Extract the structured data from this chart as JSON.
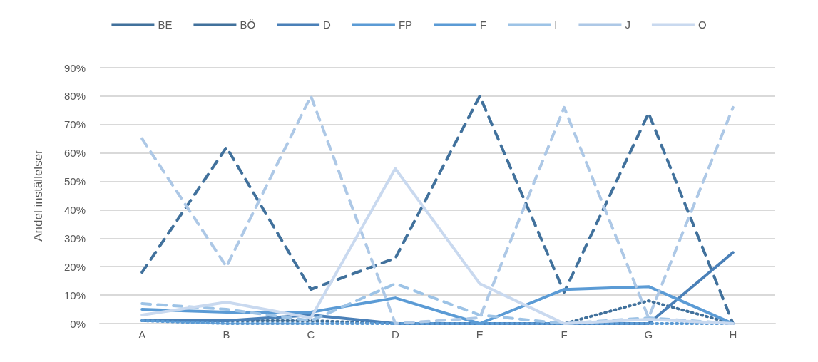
{
  "chart_data": {
    "type": "line",
    "ylabel": "Andel inställelser",
    "categories": [
      "A",
      "B",
      "C",
      "D",
      "E",
      "F",
      "G",
      "H"
    ],
    "series": [
      {
        "name": "BE",
        "color": "#41719c",
        "line_style": "dotted",
        "values": [
          1,
          1,
          1,
          0,
          0,
          0,
          8,
          0
        ]
      },
      {
        "name": "BÖ",
        "color": "#41719c",
        "line_style": "dashed",
        "values": [
          18,
          62,
          12,
          23,
          80,
          11,
          74,
          0
        ]
      },
      {
        "name": "D",
        "color": "#4a80b8",
        "line_style": "solid",
        "values": [
          1,
          1,
          3,
          0,
          0,
          0,
          0,
          25
        ]
      },
      {
        "name": "FP",
        "color": "#5b9bd5",
        "line_style": "solid",
        "values": [
          5,
          4,
          4,
          9,
          0,
          12,
          13,
          0
        ]
      },
      {
        "name": "F",
        "color": "#5b9bd5",
        "line_style": "dotted",
        "values": [
          1,
          0,
          0,
          0,
          0,
          0,
          0,
          0
        ]
      },
      {
        "name": "I",
        "color": "#9dc3e6",
        "line_style": "dashed",
        "values": [
          7,
          5,
          1,
          14,
          3,
          0,
          2,
          0
        ]
      },
      {
        "name": "J",
        "color": "#adc8e6",
        "line_style": "dashed",
        "values": [
          65,
          20,
          80,
          0,
          2,
          76,
          2,
          76
        ]
      },
      {
        "name": "O",
        "color": "#c9d9ef",
        "line_style": "solid",
        "values": [
          3,
          7.5,
          2,
          54.5,
          14,
          0,
          1.5,
          0
        ]
      }
    ],
    "ylim": [
      0,
      90
    ],
    "yticks": [
      {
        "value": 0,
        "label": "0%"
      },
      {
        "value": 10,
        "label": "10%"
      },
      {
        "value": 20,
        "label": "20%"
      },
      {
        "value": 30,
        "label": "30%"
      },
      {
        "value": 40,
        "label": "40%"
      },
      {
        "value": 50,
        "label": "50%"
      },
      {
        "value": 60,
        "label": "60%"
      },
      {
        "value": 70,
        "label": "70%"
      },
      {
        "value": 80,
        "label": "80%"
      },
      {
        "value": 90,
        "label": "90%"
      }
    ],
    "grid": "y",
    "legend": "top",
    "marker": "none"
  }
}
